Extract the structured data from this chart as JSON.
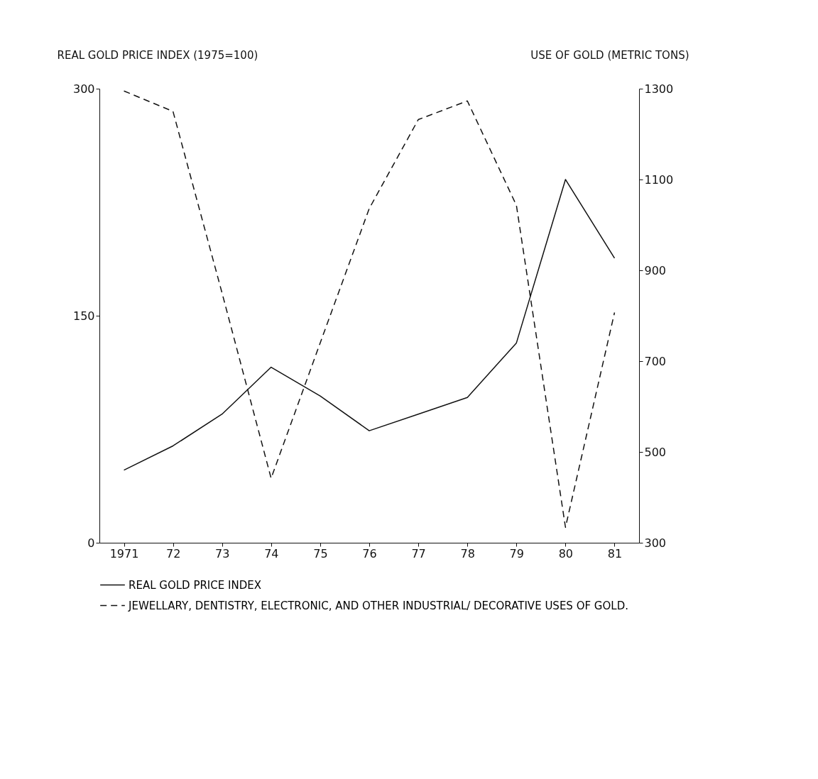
{
  "chart_data": {
    "type": "line",
    "ylabel": "REAL GOLD PRICE INDEX (1975=100)",
    "y2label": "USE OF GOLD (METRIC TONS)",
    "categories": [
      "1971",
      "72",
      "73",
      "74",
      "75",
      "76",
      "77",
      "78",
      "79",
      "80",
      "81"
    ],
    "series": [
      {
        "name": "REAL GOLD PRICE INDEX",
        "color": "#111111",
        "line_style": "solid",
        "values": [
          48,
          64,
          85,
          116,
          97,
          74,
          85,
          96,
          132,
          240,
          188
        ]
      },
      {
        "name": "JEWELLARY, DENTISTRY, ELECTRONIC, AND OTHER INDUSTRIAL/ DECORATIVE USES OF GOLD.",
        "color": "#111111",
        "line_style": "dashed",
        "axis": "y2",
        "values": [
          1295,
          1250,
          850,
          442,
          740,
          1036,
          1232,
          1273,
          1043,
          334,
          807
        ]
      }
    ],
    "ylim": [
      0,
      300
    ],
    "yticks": [
      0,
      150,
      300
    ],
    "y2lim": [
      300,
      1300
    ],
    "y2ticks": [
      300,
      500,
      700,
      900,
      1100,
      1300
    ],
    "grid": false,
    "legend": "bottom",
    "marker": "none"
  }
}
